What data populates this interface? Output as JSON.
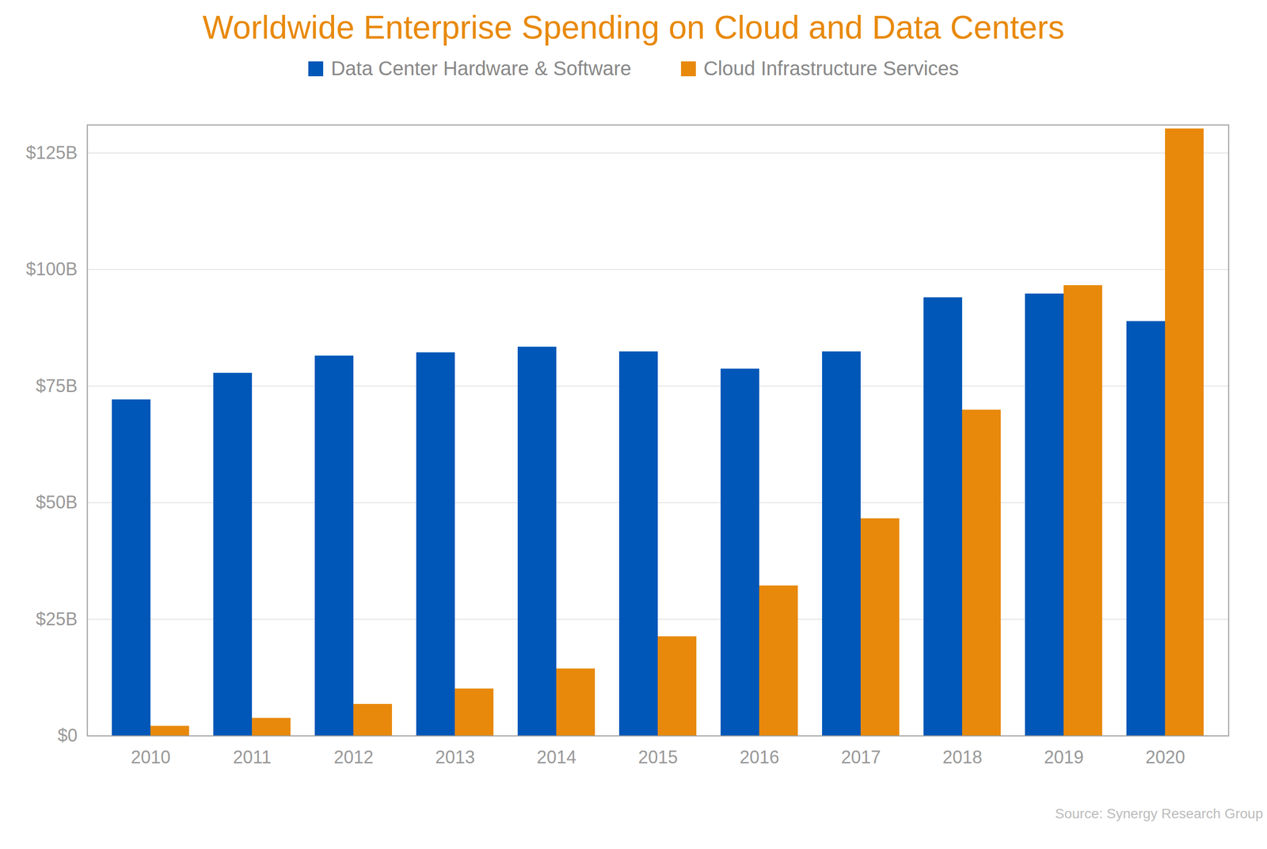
{
  "chart_data": {
    "type": "bar",
    "title": "Worldwide Enterprise Spending on Cloud and Data Centers",
    "source": "Source: Synergy Research Group",
    "categories": [
      "2010",
      "2011",
      "2012",
      "2013",
      "2014",
      "2015",
      "2016",
      "2017",
      "2018",
      "2019",
      "2020"
    ],
    "series": [
      {
        "name": "Data Center Hardware & Software",
        "color": "#0057B8",
        "values": [
          72.1,
          77.8,
          81.5,
          82.2,
          83.4,
          82.4,
          78.7,
          82.4,
          94.0,
          94.8,
          88.9
        ]
      },
      {
        "name": "Cloud Infrastructure Services",
        "color": "#E8890C",
        "values": [
          2.1,
          3.8,
          6.8,
          10.1,
          14.4,
          21.3,
          32.2,
          46.6,
          69.9,
          96.6,
          130.2
        ]
      }
    ],
    "ylim": [
      0,
      131
    ],
    "yticks": [
      {
        "value": 0,
        "label": "$0"
      },
      {
        "value": 25,
        "label": "$25B"
      },
      {
        "value": 50,
        "label": "$50B"
      },
      {
        "value": 75,
        "label": "$75B"
      },
      {
        "value": 100,
        "label": "$100B"
      },
      {
        "value": 125,
        "label": "$125B"
      }
    ],
    "grid": true,
    "legend": "top"
  }
}
